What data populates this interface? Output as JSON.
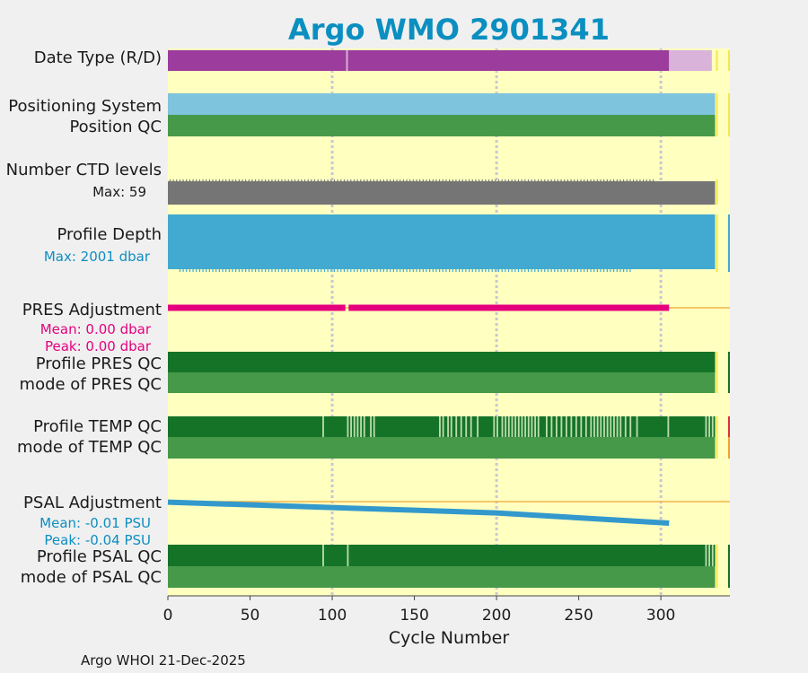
{
  "title": "Argo WMO 2901341",
  "footer": "Argo WHOI 21-Dec-2025",
  "colors": {
    "panel": "#ffffc0",
    "title": "#0a8fc0",
    "delayed": "#9c3c9c",
    "realtime": "#d9b3d9",
    "positioning": "#7fc4dd",
    "qc_good": "#47994a",
    "qc_dark": "#157328",
    "qc_light": "#bcdcaa",
    "ctd": "#757575",
    "depth": "#42aad0",
    "pres_adj": "#e6007e",
    "psal_adj": "#3399cc",
    "psal_label": "#0e8ec1",
    "zero_line": "#f2b54a",
    "grid": "#c8c8d0",
    "flag_yellow": "#f5e84a",
    "flag_red": "#e03030",
    "flag_orange": "#f2a030",
    "flag_teal": "#42aad0"
  },
  "rows": {
    "date_type": {
      "label": "Date Type (R/D)"
    },
    "positioning_system": {
      "label": "Positioning System"
    },
    "position_qc": {
      "label": "Position QC"
    },
    "ctd_levels": {
      "label": "Number CTD levels",
      "max_label": "Max: 59"
    },
    "profile_depth": {
      "label": "Profile Depth",
      "max_label": "Max: 2001 dbar"
    },
    "pres_adjustment": {
      "label": "PRES Adjustment",
      "mean_label": "Mean: 0.00 dbar",
      "peak_label": "Peak: 0.00 dbar"
    },
    "profile_pres_qc": {
      "label": "Profile PRES QC"
    },
    "mode_pres_qc": {
      "label": "mode of PRES QC"
    },
    "profile_temp_qc": {
      "label": "Profile TEMP QC"
    },
    "mode_temp_qc": {
      "label": "mode of TEMP QC"
    },
    "psal_adjustment": {
      "label": "PSAL Adjustment",
      "mean_label": "Mean: -0.01 PSU",
      "peak_label": "Peak: -0.04 PSU"
    },
    "profile_psal_qc": {
      "label": "Profile PSAL QC"
    },
    "mode_psal_qc": {
      "label": "mode of PSAL QC"
    }
  },
  "chart_data": {
    "type": "bar",
    "xlabel": "Cycle Number",
    "xlim": [
      0,
      342
    ],
    "xticks": [
      0,
      50,
      100,
      150,
      200,
      250,
      300
    ],
    "grid_x": [
      100,
      200,
      300
    ],
    "max_cycle": 333,
    "date_type": [
      {
        "from": 0,
        "to": 305,
        "mode": "D"
      },
      {
        "from": 305,
        "to": 331,
        "mode": "R"
      }
    ],
    "temp_qc_light_cycles": [
      94,
      109,
      111,
      113,
      115,
      117,
      119,
      123,
      125,
      165,
      167,
      170,
      172,
      175,
      178,
      181,
      184,
      188,
      198,
      200,
      203,
      205,
      207,
      209,
      211,
      213,
      215,
      217,
      219,
      221,
      223,
      225,
      230,
      233,
      236,
      239,
      242,
      245,
      248,
      251,
      254,
      257,
      259,
      261,
      263,
      265,
      267,
      269,
      271,
      273,
      275,
      278,
      281,
      285,
      304,
      327,
      329,
      331
    ],
    "psal_qc_light_cycles": [
      94,
      109,
      327,
      329,
      331
    ],
    "pres_adjustment_dbar": {
      "mean": 0.0,
      "peak": 0.0
    },
    "psal_adjustment_psu": {
      "mean": -0.01,
      "peak": -0.04,
      "points": [
        [
          0,
          -0.001
        ],
        [
          100,
          -0.011
        ],
        [
          200,
          -0.021
        ],
        [
          305,
          -0.04
        ]
      ]
    },
    "ctd_levels_max": 59,
    "profile_depth_max_dbar": 2001
  }
}
